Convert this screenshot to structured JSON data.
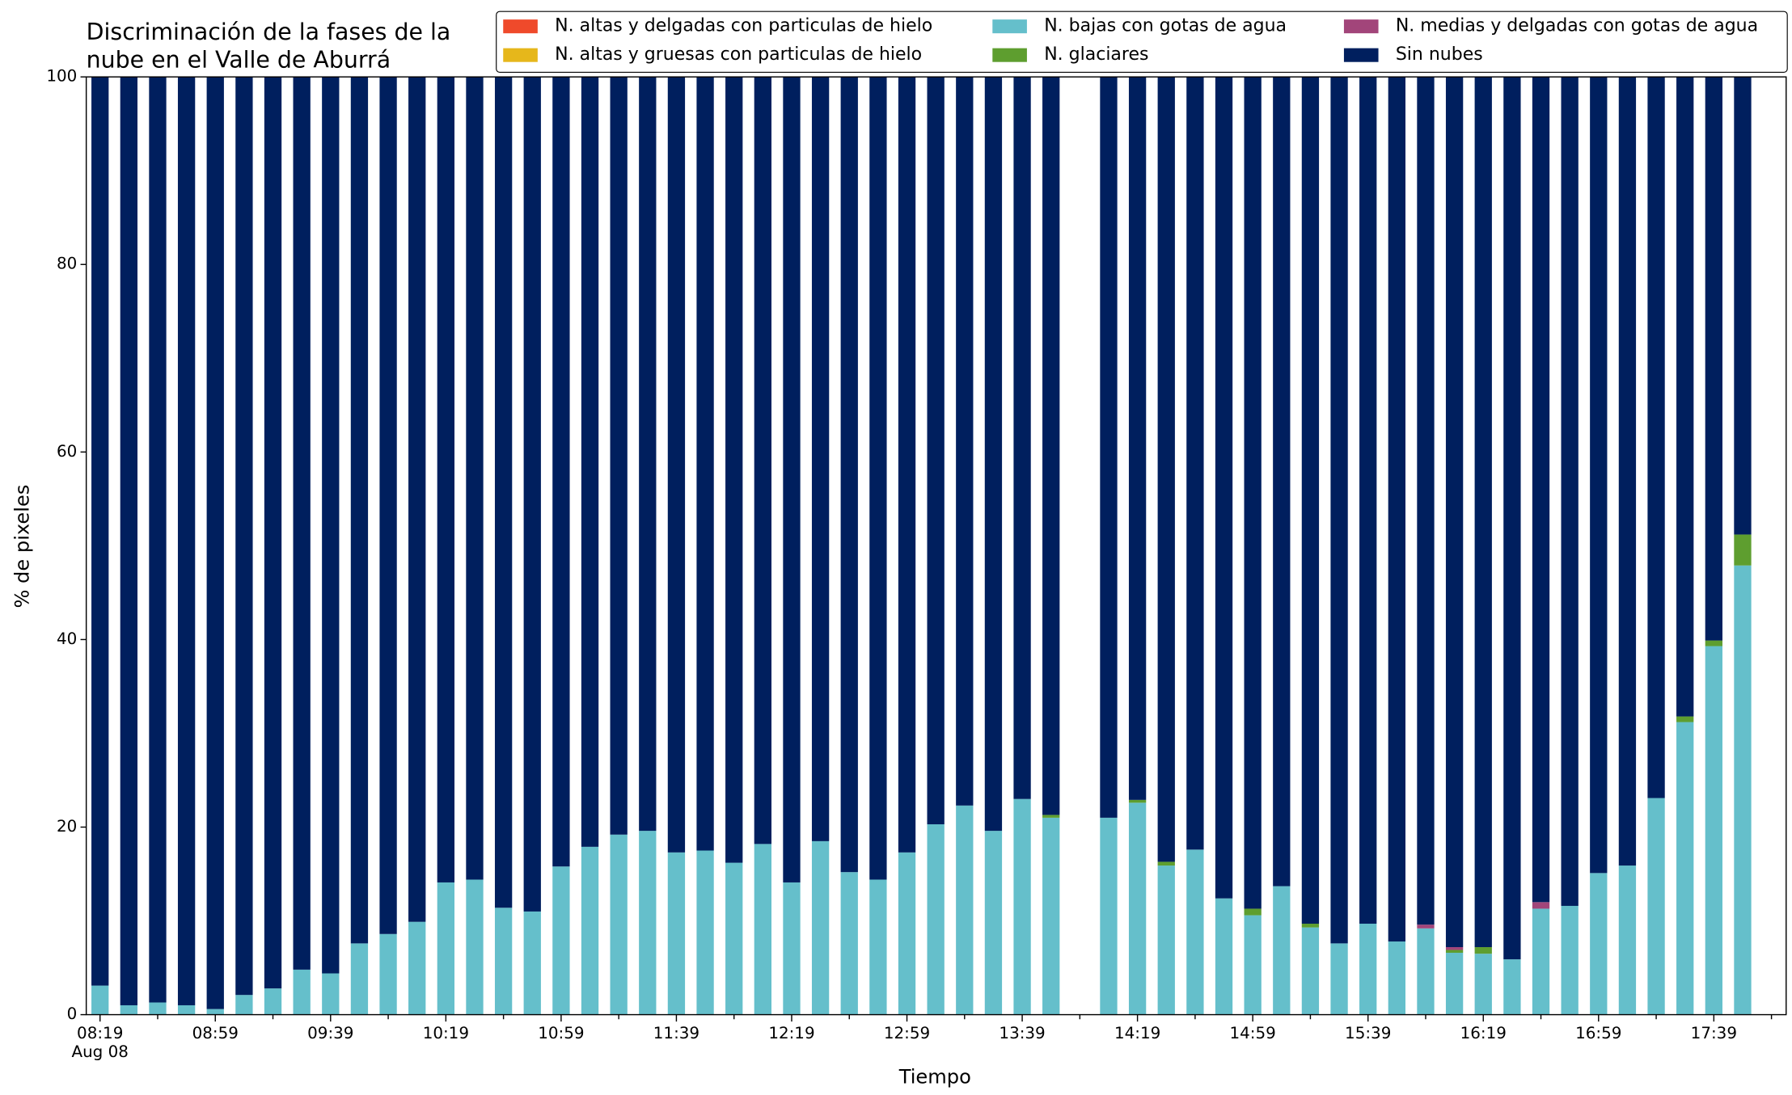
{
  "chart_data": {
    "type": "bar",
    "stacked": true,
    "title_lines": [
      "Discriminación de la fases de la",
      "nube en el Valle de Aburrá"
    ],
    "xlabel": "Tiempo",
    "ylabel": "% de pixeles",
    "date_label": "Aug 08",
    "categories": [
      "08:19",
      null,
      null,
      null,
      "08:59",
      null,
      null,
      null,
      "09:39",
      null,
      null,
      null,
      "10:19",
      null,
      null,
      null,
      "10:59",
      null,
      null,
      null,
      "11:39",
      null,
      null,
      null,
      "12:19",
      null,
      null,
      null,
      "12:59",
      null,
      null,
      null,
      "13:39",
      null,
      null,
      null,
      "14:19",
      null,
      null,
      null,
      "14:59",
      null,
      null,
      null,
      "15:39",
      null,
      null,
      null,
      "16:19",
      null,
      null,
      null,
      "16:59",
      null,
      null,
      null,
      "17:39",
      null
    ],
    "ylim": [
      0,
      100
    ],
    "yticks": [
      0,
      20,
      40,
      60,
      80,
      100
    ],
    "legend_columns": 3,
    "legend_position": "top-right",
    "series": [
      {
        "name": "N. altas y delgadas con particulas de hielo",
        "color": "#ef4a2b",
        "values": [
          0,
          0,
          0,
          0,
          0,
          0,
          0,
          0,
          0,
          0,
          0,
          0,
          0,
          0,
          0,
          0,
          0,
          0,
          0,
          0,
          0,
          0,
          0,
          0,
          0,
          0,
          0,
          0,
          0,
          0,
          0,
          0,
          0,
          0,
          null,
          0,
          0,
          0,
          0,
          0,
          0,
          0,
          0,
          0,
          0,
          0,
          0,
          0,
          0,
          0,
          0,
          0,
          0,
          0,
          0,
          0,
          0,
          0
        ]
      },
      {
        "name": "N. altas y gruesas con particulas de hielo",
        "color": "#e6b71b",
        "values": [
          0,
          0,
          0,
          0,
          0,
          0,
          0,
          0,
          0,
          0,
          0,
          0,
          0,
          0,
          0,
          0,
          0,
          0,
          0,
          0,
          0,
          0,
          0,
          0,
          0,
          0,
          0,
          0,
          0,
          0,
          0,
          0,
          0,
          0,
          null,
          0,
          0,
          0,
          0,
          0,
          0,
          0,
          0,
          0,
          0,
          0,
          0,
          0,
          0,
          0,
          0,
          0,
          0,
          0,
          0,
          0,
          0,
          0
        ]
      },
      {
        "name": "N. bajas con gotas de agua",
        "color": "#65bfcb",
        "values": [
          3.1,
          1.0,
          1.3,
          1.0,
          0.6,
          2.1,
          2.8,
          4.8,
          4.4,
          7.6,
          8.6,
          9.9,
          14.1,
          14.4,
          11.4,
          11.0,
          15.8,
          17.9,
          19.2,
          19.6,
          17.3,
          17.5,
          16.2,
          18.2,
          14.1,
          18.5,
          15.2,
          14.4,
          17.3,
          20.3,
          22.3,
          19.6,
          23.0,
          21.0,
          null,
          21.0,
          22.6,
          15.9,
          17.6,
          12.4,
          10.6,
          13.7,
          9.3,
          7.6,
          9.7,
          7.8,
          9.2,
          6.6,
          6.5,
          5.9,
          11.3,
          11.6,
          15.1,
          15.9,
          23.1,
          31.2,
          39.3,
          47.9
        ]
      },
      {
        "name": "N. glaciares",
        "color": "#5e9e2f",
        "values": [
          0,
          0,
          0,
          0,
          0,
          0,
          0,
          0,
          0,
          0,
          0,
          0,
          0,
          0,
          0,
          0,
          0,
          0,
          0,
          0,
          0,
          0,
          0,
          0,
          0,
          0,
          0,
          0,
          0,
          0,
          0,
          0,
          0,
          0.3,
          null,
          0,
          0.3,
          0.4,
          0,
          0,
          0.7,
          0,
          0.4,
          0,
          0,
          0,
          0,
          0.3,
          0.7,
          0,
          0,
          0,
          0,
          0,
          0,
          0.6,
          0.6,
          3.3
        ]
      },
      {
        "name": "N. medias y delgadas con gotas de agua",
        "color": "#a2457a",
        "values": [
          0,
          0,
          0,
          0,
          0,
          0,
          0,
          0,
          0,
          0,
          0,
          0,
          0,
          0,
          0,
          0,
          0,
          0,
          0,
          0,
          0,
          0,
          0,
          0,
          0,
          0,
          0,
          0,
          0,
          0,
          0,
          0,
          0,
          0,
          null,
          0,
          0,
          0,
          0,
          0,
          0,
          0,
          0,
          0,
          0,
          0,
          0.4,
          0.3,
          0,
          0,
          0.7,
          0,
          0,
          0,
          0,
          0,
          0,
          0
        ]
      },
      {
        "name": "Sin nubes",
        "color": "#001f5e",
        "values": [
          96.9,
          99.0,
          98.7,
          99.0,
          99.4,
          97.9,
          97.2,
          95.2,
          95.6,
          92.4,
          91.4,
          90.1,
          85.9,
          85.6,
          88.6,
          89.0,
          84.2,
          82.1,
          80.8,
          80.4,
          82.7,
          82.5,
          83.8,
          81.8,
          85.9,
          81.5,
          84.8,
          85.6,
          82.7,
          79.7,
          77.7,
          80.4,
          77.0,
          78.7,
          null,
          79.0,
          77.1,
          83.7,
          82.4,
          87.6,
          88.7,
          86.3,
          90.3,
          92.4,
          90.3,
          92.2,
          90.4,
          92.8,
          92.8,
          94.1,
          88.0,
          88.4,
          84.9,
          84.1,
          76.9,
          68.2,
          60.1,
          48.8
        ]
      }
    ]
  }
}
